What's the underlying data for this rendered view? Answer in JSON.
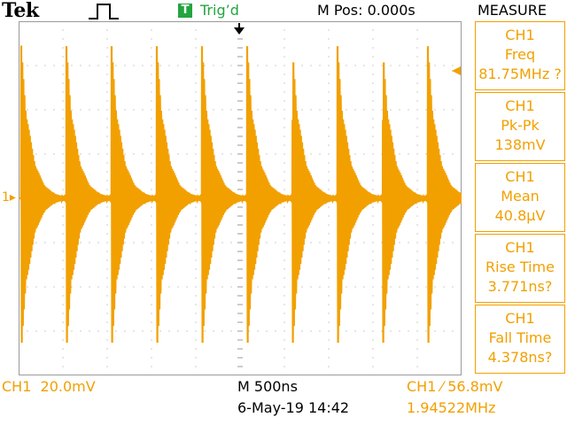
{
  "header": {
    "brand": "Tek",
    "trigger_icon_letter": "T",
    "trigger_status": "Trig’d",
    "m_pos": "M Pos: 0.000s",
    "measure_title": "MEASURE"
  },
  "measurements": [
    {
      "channel": "CH1",
      "name": "Freq",
      "value": "81.75MHz ?"
    },
    {
      "channel": "CH1",
      "name": "Pk-Pk",
      "value": "138mV"
    },
    {
      "channel": "CH1",
      "name": "Mean",
      "value": "40.8μV"
    },
    {
      "channel": "CH1",
      "name": "Rise Time",
      "value": "3.771ns?"
    },
    {
      "channel": "CH1",
      "name": "Fall Time",
      "value": "4.378ns?"
    }
  ],
  "channel_marker": "1",
  "footer": {
    "ch_scale": "CH1  20.0mV",
    "timebase": "M 500ns",
    "date_time": "6-May-19 14:42",
    "trigger_setting": "CH1 ⁄ 56.8mV",
    "trigger_freq": "1.94522MHz"
  },
  "colors": {
    "trace": "#f2a000",
    "trigger_green": "#22a540",
    "grid": "#9a9a9a"
  },
  "chart_data": {
    "type": "line",
    "title": "",
    "xlabel": "",
    "ylabel": "",
    "volts_per_div": 0.02,
    "seconds_per_div": 5e-07,
    "x_divisions": 10,
    "y_divisions": 8,
    "burst_period_s": 5.14e-07,
    "burst_start_times_s": [
      -2.47e-06,
      -1.96e-06,
      -1.45e-06,
      -9.4e-07,
      -4.3e-07,
      8e-08,
      5.9e-07,
      1.1e-06,
      1.61e-06,
      2.12e-06
    ],
    "burst_peak_high_v": 0.068,
    "burst_peak_low_v": -0.07,
    "ringing_frequency_hz": 81750000,
    "decay_time_s": 1.1e-07,
    "grid": true
  }
}
